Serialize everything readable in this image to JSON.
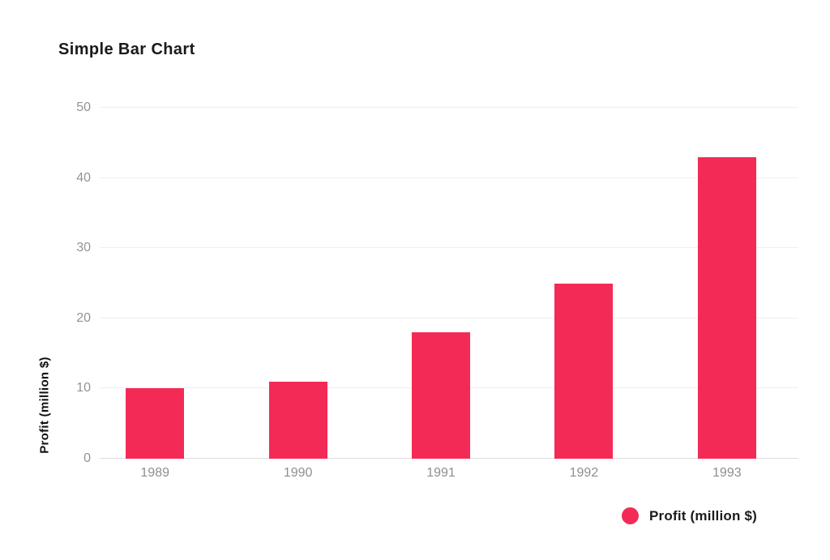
{
  "title": "Simple Bar Chart",
  "chart_data": {
    "type": "bar",
    "title": "Simple Bar Chart",
    "categories": [
      "1989",
      "1990",
      "1991",
      "1992",
      "1993"
    ],
    "values": [
      10,
      11,
      18,
      25,
      43
    ],
    "series_name": "Profit (million $)",
    "xlabel": "",
    "ylabel": "Profit (million $)",
    "ylim": [
      0,
      50
    ],
    "yticks": [
      0,
      10,
      20,
      30,
      40,
      50
    ],
    "grid": "horizontal",
    "legend_position": "bottom-right",
    "bar_color": "#f42a56"
  },
  "legend": {
    "label": "Profit (million $)",
    "swatch_color": "#f42a56"
  },
  "colors": {
    "background": "#ffffff",
    "gridline": "#efefef",
    "axis_baseline": "#dedede",
    "tick_text": "#939393",
    "category_text": "#8e8e8e",
    "title_text": "#1a1a1a"
  }
}
